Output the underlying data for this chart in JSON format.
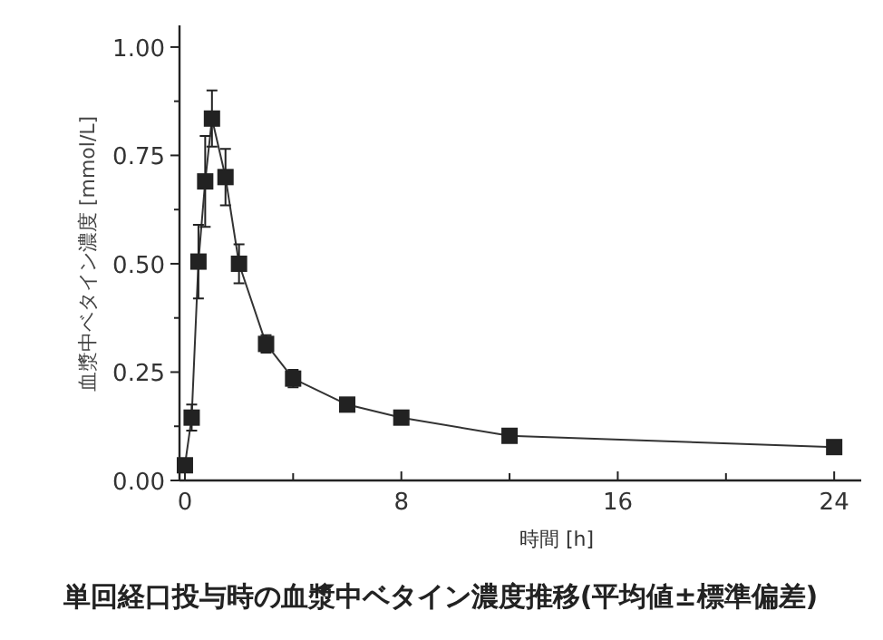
{
  "chart_data": {
    "type": "line",
    "title": "単回経口投与時の血漿中ベタイン濃度推移(平均値±標準偏差)",
    "xlabel": "時間 [h]",
    "ylabel": "血漿中ベタイン濃度 [mmol/L]",
    "x": [
      0,
      0.25,
      0.5,
      0.75,
      1,
      1.5,
      2,
      3,
      4,
      6,
      8,
      12,
      24
    ],
    "series": [
      {
        "color": "#222222",
        "values": [
          0.035,
          0.145,
          0.505,
          0.69,
          0.835,
          0.7,
          0.5,
          0.315,
          0.235,
          0.175,
          0.145,
          0.103,
          0.077
        ],
        "errors": [
          null,
          0.03,
          0.085,
          0.105,
          0.065,
          0.065,
          0.045,
          0.02,
          0.02,
          null,
          null,
          null,
          null
        ]
      }
    ],
    "marker": "square",
    "line_style": "solid",
    "xlim": [
      -0.2,
      25
    ],
    "xticks": [
      0,
      {
        "value": 4,
        "label": null
      },
      8,
      {
        "value": 12,
        "label": null
      },
      16,
      {
        "value": 20,
        "label": null
      },
      24
    ],
    "ylim": [
      0,
      1.05
    ],
    "yticks": [
      {
        "value": 0,
        "label": "0.00"
      },
      {
        "value": 0.125,
        "label": null
      },
      {
        "value": 0.25,
        "label": "0.25"
      },
      {
        "value": 0.375,
        "label": null
      },
      {
        "value": 0.5,
        "label": "0.50"
      },
      {
        "value": 0.625,
        "label": null
      },
      {
        "value": 0.75,
        "label": "0.75"
      },
      {
        "value": 0.875,
        "label": null
      },
      {
        "value": 1,
        "label": "1.00"
      }
    ],
    "grid": false
  }
}
